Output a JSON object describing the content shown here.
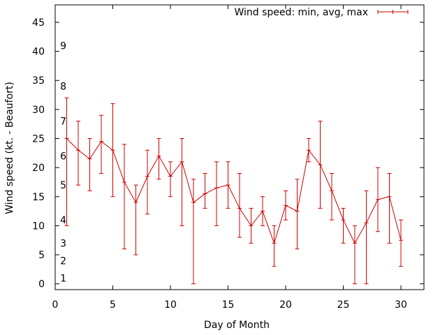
{
  "chart_data": {
    "type": "line",
    "title": "",
    "xlabel": "Day of Month",
    "ylabel": "Wind speed (kt. - Beaufort)",
    "xlim": [
      0,
      32
    ],
    "ylim": [
      -1,
      48
    ],
    "xticks": [
      0,
      5,
      10,
      15,
      20,
      25,
      30
    ],
    "yticks": [
      0,
      5,
      10,
      15,
      20,
      25,
      30,
      35,
      40,
      45
    ],
    "xtick_labels": [
      "0",
      "5",
      "10",
      "15",
      "20",
      "25",
      "30"
    ],
    "ytick_labels": [
      "0",
      "5",
      "10",
      "15",
      "20",
      "25",
      "30",
      "35",
      "40",
      "45"
    ],
    "grid": false,
    "legend_position": "top-right",
    "series": [
      {
        "name": "Wind speed: min, avg, max",
        "color": "#cc0000",
        "x": [
          1,
          2,
          3,
          4,
          5,
          6,
          7,
          8,
          9,
          10,
          11,
          12,
          13,
          14,
          15,
          16,
          17,
          18,
          19,
          20,
          21,
          22,
          23,
          24,
          25,
          26,
          27,
          28,
          29,
          30
        ],
        "avg": [
          25,
          23,
          21.5,
          24.5,
          23,
          17.5,
          14,
          18.5,
          22,
          18.5,
          21,
          14,
          15.5,
          16.5,
          17,
          13,
          10,
          12.5,
          7,
          13.5,
          12.5,
          23,
          20.5,
          16,
          11,
          7,
          10.5,
          14.5,
          15,
          7.5
        ],
        "min": [
          10,
          17,
          16,
          19,
          15,
          6,
          5,
          12,
          18,
          15,
          10,
          0,
          13,
          10,
          13,
          8,
          7,
          10,
          3,
          11,
          6,
          21,
          13,
          11,
          7,
          0,
          0,
          9,
          7,
          3
        ],
        "max": [
          32,
          28,
          25,
          29,
          31,
          24,
          17,
          23,
          25,
          21,
          25,
          18,
          19,
          21,
          21,
          19,
          13,
          15,
          10,
          16,
          18,
          25,
          28,
          19,
          13,
          10,
          16,
          20,
          19,
          11
        ]
      }
    ],
    "annotations": [
      {
        "text": "1",
        "x": 0.7,
        "y": 1
      },
      {
        "text": "2",
        "x": 0.7,
        "y": 4
      },
      {
        "text": "3",
        "x": 0.7,
        "y": 7
      },
      {
        "text": "4",
        "x": 0.7,
        "y": 11
      },
      {
        "text": "5",
        "x": 0.7,
        "y": 17
      },
      {
        "text": "6",
        "x": 0.7,
        "y": 22
      },
      {
        "text": "7",
        "x": 0.7,
        "y": 28
      },
      {
        "text": "8",
        "x": 0.7,
        "y": 34
      },
      {
        "text": "9",
        "x": 0.7,
        "y": 41
      }
    ]
  }
}
